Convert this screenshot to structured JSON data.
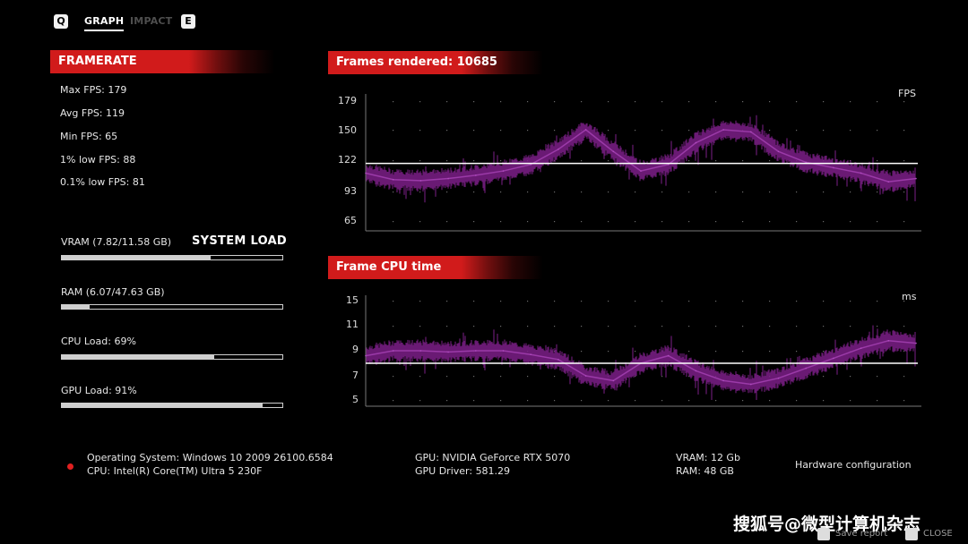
{
  "tabs": {
    "q_key": "Q",
    "graph": "GRAPH",
    "impact": "IMPACT",
    "e_key": "E"
  },
  "framerate": {
    "title": "FRAMERATE",
    "stats": [
      "Max FPS: 179",
      "Avg FPS: 119",
      "Min FPS: 65",
      "1% low FPS: 88",
      "0.1% low FPS: 81"
    ]
  },
  "system_load": {
    "title": "SYSTEM LOAD",
    "bars": [
      {
        "label": "VRAM (7.82/11.58 GB)",
        "fraction": 0.675
      },
      {
        "label": "RAM (6.07/47.63 GB)",
        "fraction": 0.127
      },
      {
        "label": "CPU Load: 69%",
        "fraction": 0.69
      },
      {
        "label": "GPU Load: 91%",
        "fraction": 0.91
      }
    ]
  },
  "fps_chart": {
    "title": "Frames rendered: 10685",
    "unit": "FPS",
    "y_ticks": [
      "179",
      "150",
      "122",
      "93",
      "65"
    ]
  },
  "cpu_chart": {
    "title": "Frame CPU time",
    "unit": "ms",
    "y_ticks": [
      "15",
      "11",
      "9",
      "7",
      "5"
    ]
  },
  "chart_data": [
    {
      "type": "line",
      "title": "Frames rendered: 10685",
      "ylabel": "FPS",
      "ylim": [
        65,
        179
      ],
      "y_ticks": [
        65,
        93,
        122,
        150,
        179
      ],
      "reference_line": 119,
      "x": [
        0,
        5,
        10,
        15,
        20,
        25,
        30,
        35,
        40,
        45,
        50,
        55,
        60,
        65,
        70,
        75,
        80,
        85,
        90,
        95,
        100
      ],
      "series": [
        {
          "values": [
            110,
            104,
            103,
            105,
            108,
            112,
            118,
            132,
            150,
            130,
            112,
            118,
            138,
            150,
            148,
            130,
            120,
            115,
            110,
            102,
            105
          ]
        }
      ]
    },
    {
      "type": "line",
      "title": "Frame CPU time",
      "ylabel": "ms",
      "ylim": [
        5,
        15
      ],
      "y_ticks": [
        5,
        7,
        9,
        11,
        15
      ],
      "reference_line": 8,
      "x": [
        0,
        5,
        10,
        15,
        20,
        25,
        30,
        35,
        40,
        45,
        50,
        55,
        60,
        65,
        70,
        75,
        80,
        85,
        90,
        95,
        100
      ],
      "series": [
        {
          "values": [
            8.6,
            9.0,
            9.0,
            8.9,
            9.0,
            9.0,
            8.7,
            8.3,
            7.0,
            6.6,
            8.0,
            8.6,
            7.4,
            6.6,
            6.3,
            6.8,
            7.6,
            8.4,
            9.2,
            9.8,
            9.6
          ]
        }
      ]
    }
  ],
  "hardware": {
    "os": "Operating System: Windows 10 2009 26100.6584",
    "cpu": "CPU: Intel(R) Core(TM) Ultra 5 230F",
    "gpu": "GPU: NVIDIA GeForce RTX 5070",
    "gpu_driver": "GPU Driver: 581.29",
    "vram": "VRAM: 12 Gb",
    "ram": "RAM: 48 GB",
    "config_label": "Hardware configuration"
  },
  "watermark": "搜狐号@微型计算机杂志",
  "footer": {
    "save": "Save report",
    "close": "CLOSE"
  },
  "colors": {
    "accent": "#d11b1b",
    "series": "#7a1f85",
    "reference": "#ffffff",
    "background": "#000000"
  }
}
